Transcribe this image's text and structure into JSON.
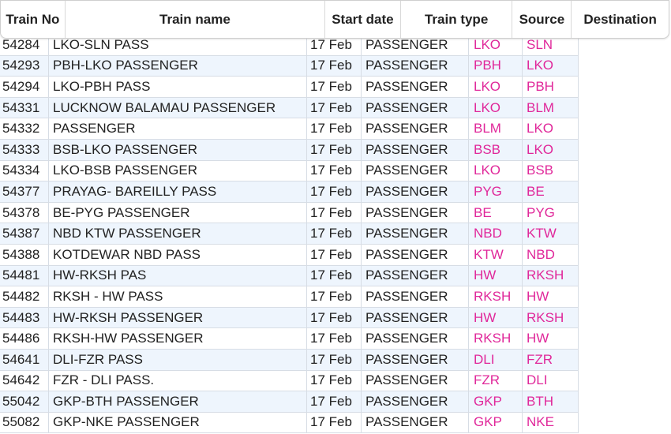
{
  "header": {
    "train_no": "Train No",
    "train_name": "Train name",
    "start_date": "Start date",
    "train_type": "Train type",
    "source": "Source",
    "destination": "Destination"
  },
  "colors": {
    "station_text": "#e0279a",
    "alt_row": "#eef5fd"
  },
  "rows": [
    {
      "no": "54284",
      "name": "LKO-SLN PASS",
      "date": "17 Feb",
      "type": "PASSENGER",
      "src": "LKO",
      "dst": "SLN"
    },
    {
      "no": "54293",
      "name": "PBH-LKO PASSENGER",
      "date": "17 Feb",
      "type": "PASSENGER",
      "src": "PBH",
      "dst": "LKO"
    },
    {
      "no": "54294",
      "name": "LKO-PBH PASS",
      "date": "17 Feb",
      "type": "PASSENGER",
      "src": "LKO",
      "dst": "PBH"
    },
    {
      "no": "54331",
      "name": "LUCKNOW BALAMAU PASSENGER",
      "date": "17 Feb",
      "type": "PASSENGER",
      "src": "LKO",
      "dst": "BLM"
    },
    {
      "no": "54332",
      "name": "PASSENGER",
      "date": "17 Feb",
      "type": "PASSENGER",
      "src": "BLM",
      "dst": "LKO"
    },
    {
      "no": "54333",
      "name": "BSB-LKO PASSENGER",
      "date": "17 Feb",
      "type": "PASSENGER",
      "src": "BSB",
      "dst": "LKO"
    },
    {
      "no": "54334",
      "name": "LKO-BSB PASSENGER",
      "date": "17 Feb",
      "type": "PASSENGER",
      "src": "LKO",
      "dst": "BSB"
    },
    {
      "no": "54377",
      "name": "PRAYAG- BAREILLY PASS",
      "date": "17 Feb",
      "type": "PASSENGER",
      "src": "PYG",
      "dst": "BE"
    },
    {
      "no": "54378",
      "name": "BE-PYG PASSENGER",
      "date": "17 Feb",
      "type": "PASSENGER",
      "src": "BE",
      "dst": "PYG"
    },
    {
      "no": "54387",
      "name": "NBD KTW PASSENGER",
      "date": "17 Feb",
      "type": "PASSENGER",
      "src": "NBD",
      "dst": "KTW"
    },
    {
      "no": "54388",
      "name": "KOTDEWAR NBD PASS",
      "date": "17 Feb",
      "type": "PASSENGER",
      "src": "KTW",
      "dst": "NBD"
    },
    {
      "no": "54481",
      "name": "HW-RKSH PAS",
      "date": "17 Feb",
      "type": "PASSENGER",
      "src": "HW",
      "dst": "RKSH"
    },
    {
      "no": "54482",
      "name": "RKSH - HW PASS",
      "date": "17 Feb",
      "type": "PASSENGER",
      "src": "RKSH",
      "dst": "HW"
    },
    {
      "no": "54483",
      "name": "HW-RKSH PASSENGER",
      "date": "17 Feb",
      "type": "PASSENGER",
      "src": "HW",
      "dst": "RKSH"
    },
    {
      "no": "54486",
      "name": "RKSH-HW PASSENGER",
      "date": "17 Feb",
      "type": "PASSENGER",
      "src": "RKSH",
      "dst": "HW"
    },
    {
      "no": "54641",
      "name": "DLI-FZR PASS",
      "date": "17 Feb",
      "type": "PASSENGER",
      "src": "DLI",
      "dst": "FZR"
    },
    {
      "no": "54642",
      "name": "FZR - DLI PASS.",
      "date": "17 Feb",
      "type": "PASSENGER",
      "src": "FZR",
      "dst": "DLI"
    },
    {
      "no": "55042",
      "name": "GKP-BTH PASSENGER",
      "date": "17 Feb",
      "type": "PASSENGER",
      "src": "GKP",
      "dst": "BTH"
    },
    {
      "no": "55082",
      "name": "GKP-NKE PASSENGER",
      "date": "17 Feb",
      "type": "PASSENGER",
      "src": "GKP",
      "dst": "NKE"
    }
  ]
}
